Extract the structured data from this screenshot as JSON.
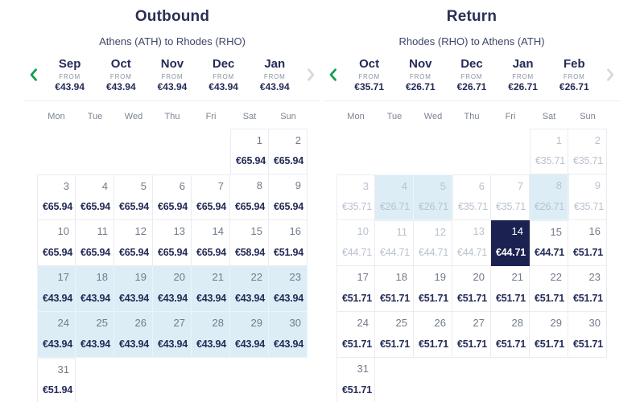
{
  "colors": {
    "navy_text": "#242b57",
    "selected_day_bg": "#1b2150",
    "highlight_day_bg": "#dcedf6",
    "muted_text": "#b9c2cf",
    "prev_arrow_green": "#12a04a",
    "next_arrow_gray": "#d8d8dc",
    "cell_border": "#ececf0"
  },
  "panels": [
    {
      "title": "Outbound",
      "subtitle": "Athens (ATH) to Rhodes (RHO)",
      "months": [
        {
          "name": "Sep",
          "from_label": "FROM",
          "price": "€43.94"
        },
        {
          "name": "Oct",
          "from_label": "FROM",
          "price": "€43.94"
        },
        {
          "name": "Nov",
          "from_label": "FROM",
          "price": "€43.94"
        },
        {
          "name": "Dec",
          "from_label": "FROM",
          "price": "€43.94"
        },
        {
          "name": "Jan",
          "from_label": "FROM",
          "price": "€43.94"
        }
      ],
      "weekdays": [
        "Mon",
        "Tue",
        "Wed",
        "Thu",
        "Fri",
        "Sat",
        "Sun"
      ],
      "calendar": {
        "leading_empty": 5,
        "days": [
          {
            "day": 1,
            "price": "€65.94",
            "state": "normal"
          },
          {
            "day": 2,
            "price": "€65.94",
            "state": "normal"
          },
          {
            "day": 3,
            "price": "€65.94",
            "state": "normal"
          },
          {
            "day": 4,
            "price": "€65.94",
            "state": "normal"
          },
          {
            "day": 5,
            "price": "€65.94",
            "state": "normal"
          },
          {
            "day": 6,
            "price": "€65.94",
            "state": "normal"
          },
          {
            "day": 7,
            "price": "€65.94",
            "state": "normal"
          },
          {
            "day": 8,
            "price": "€65.94",
            "state": "normal"
          },
          {
            "day": 9,
            "price": "€65.94",
            "state": "normal"
          },
          {
            "day": 10,
            "price": "€65.94",
            "state": "normal"
          },
          {
            "day": 11,
            "price": "€65.94",
            "state": "normal"
          },
          {
            "day": 12,
            "price": "€65.94",
            "state": "normal"
          },
          {
            "day": 13,
            "price": "€65.94",
            "state": "normal"
          },
          {
            "day": 14,
            "price": "€65.94",
            "state": "normal"
          },
          {
            "day": 15,
            "price": "€58.94",
            "state": "normal"
          },
          {
            "day": 16,
            "price": "€51.94",
            "state": "normal"
          },
          {
            "day": 17,
            "price": "€43.94",
            "state": "highlight"
          },
          {
            "day": 18,
            "price": "€43.94",
            "state": "highlight"
          },
          {
            "day": 19,
            "price": "€43.94",
            "state": "highlight"
          },
          {
            "day": 20,
            "price": "€43.94",
            "state": "highlight"
          },
          {
            "day": 21,
            "price": "€43.94",
            "state": "highlight"
          },
          {
            "day": 22,
            "price": "€43.94",
            "state": "highlight"
          },
          {
            "day": 23,
            "price": "€43.94",
            "state": "highlight"
          },
          {
            "day": 24,
            "price": "€43.94",
            "state": "highlight"
          },
          {
            "day": 25,
            "price": "€43.94",
            "state": "highlight"
          },
          {
            "day": 26,
            "price": "€43.94",
            "state": "highlight"
          },
          {
            "day": 27,
            "price": "€43.94",
            "state": "highlight"
          },
          {
            "day": 28,
            "price": "€43.94",
            "state": "highlight"
          },
          {
            "day": 29,
            "price": "€43.94",
            "state": "highlight"
          },
          {
            "day": 30,
            "price": "€43.94",
            "state": "highlight"
          },
          {
            "day": 31,
            "price": "€51.94",
            "state": "normal"
          }
        ]
      }
    },
    {
      "title": "Return",
      "subtitle": "Rhodes (RHO) to Athens (ATH)",
      "months": [
        {
          "name": "Oct",
          "from_label": "FROM",
          "price": "€35.71"
        },
        {
          "name": "Nov",
          "from_label": "FROM",
          "price": "€26.71"
        },
        {
          "name": "Dec",
          "from_label": "FROM",
          "price": "€26.71"
        },
        {
          "name": "Jan",
          "from_label": "FROM",
          "price": "€26.71"
        },
        {
          "name": "Feb",
          "from_label": "FROM",
          "price": "€26.71"
        }
      ],
      "weekdays": [
        "Mon",
        "Tue",
        "Wed",
        "Thu",
        "Fri",
        "Sat",
        "Sun"
      ],
      "calendar": {
        "leading_empty": 5,
        "days": [
          {
            "day": 1,
            "price": "€35.71",
            "state": "muted"
          },
          {
            "day": 2,
            "price": "€35.71",
            "state": "muted"
          },
          {
            "day": 3,
            "price": "€35.71",
            "state": "muted"
          },
          {
            "day": 4,
            "price": "€26.71",
            "state": "muted-highlight"
          },
          {
            "day": 5,
            "price": "€26.71",
            "state": "muted-highlight"
          },
          {
            "day": 6,
            "price": "€35.71",
            "state": "muted"
          },
          {
            "day": 7,
            "price": "€35.71",
            "state": "muted"
          },
          {
            "day": 8,
            "price": "€26.71",
            "state": "muted-highlight"
          },
          {
            "day": 9,
            "price": "€35.71",
            "state": "muted"
          },
          {
            "day": 10,
            "price": "€44.71",
            "state": "muted"
          },
          {
            "day": 11,
            "price": "€44.71",
            "state": "muted"
          },
          {
            "day": 12,
            "price": "€44.71",
            "state": "muted"
          },
          {
            "day": 13,
            "price": "€44.71",
            "state": "muted"
          },
          {
            "day": 14,
            "price": "€44.71",
            "state": "selected"
          },
          {
            "day": 15,
            "price": "€44.71",
            "state": "normal"
          },
          {
            "day": 16,
            "price": "€51.71",
            "state": "normal"
          },
          {
            "day": 17,
            "price": "€51.71",
            "state": "normal"
          },
          {
            "day": 18,
            "price": "€51.71",
            "state": "normal"
          },
          {
            "day": 19,
            "price": "€51.71",
            "state": "normal"
          },
          {
            "day": 20,
            "price": "€51.71",
            "state": "normal"
          },
          {
            "day": 21,
            "price": "€51.71",
            "state": "normal"
          },
          {
            "day": 22,
            "price": "€51.71",
            "state": "normal"
          },
          {
            "day": 23,
            "price": "€51.71",
            "state": "normal"
          },
          {
            "day": 24,
            "price": "€51.71",
            "state": "normal"
          },
          {
            "day": 25,
            "price": "€51.71",
            "state": "normal"
          },
          {
            "day": 26,
            "price": "€51.71",
            "state": "normal"
          },
          {
            "day": 27,
            "price": "€51.71",
            "state": "normal"
          },
          {
            "day": 28,
            "price": "€51.71",
            "state": "normal"
          },
          {
            "day": 29,
            "price": "€51.71",
            "state": "normal"
          },
          {
            "day": 30,
            "price": "€51.71",
            "state": "normal"
          },
          {
            "day": 31,
            "price": "€51.71",
            "state": "normal"
          }
        ]
      }
    }
  ]
}
